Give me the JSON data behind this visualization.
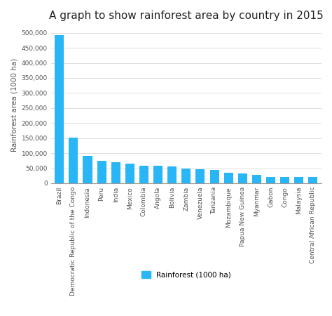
{
  "title": "A graph to show rainforest area by country in 2015",
  "ylabel": "Rainforest area (1000 ha)",
  "legend_label": "Rainforest (1000 ha)",
  "bar_color": "#29b6f6",
  "background_color": "#ffffff",
  "categories": [
    "Brazil",
    "Democratic Republic of the Congo",
    "Indonesia",
    "Peru",
    "India",
    "Mexico",
    "Colombia",
    "Angola",
    "Bolivia",
    "Zambia",
    "Venezuela",
    "Tanzania",
    "Mozambique",
    "Papua New Guinea",
    "Myanmar",
    "Gabon",
    "Congo",
    "Malaysia",
    "Central African Republic"
  ],
  "values": [
    493000,
    152000,
    91000,
    74000,
    70000,
    66000,
    59000,
    59000,
    55000,
    49000,
    46000,
    45000,
    36000,
    32000,
    29000,
    22000,
    22000,
    22000,
    22000
  ],
  "ylim": [
    0,
    520000
  ],
  "yticks": [
    0,
    50000,
    100000,
    150000,
    200000,
    250000,
    300000,
    350000,
    400000,
    450000,
    500000
  ],
  "grid_color": "#dddddd",
  "title_fontsize": 11,
  "tick_fontsize": 6.5,
  "ylabel_fontsize": 7.5
}
